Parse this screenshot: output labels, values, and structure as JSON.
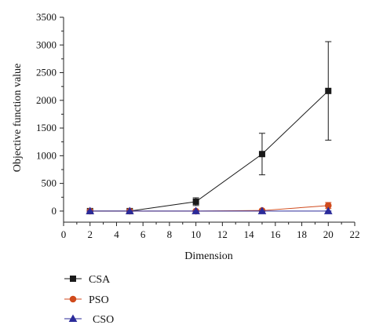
{
  "chart_data": {
    "type": "line",
    "xlabel": "Dimension",
    "ylabel": "Objective function value",
    "xlim": [
      0,
      22
    ],
    "ylim": [
      -200,
      3500
    ],
    "xticks": [
      0,
      2,
      4,
      6,
      8,
      10,
      12,
      14,
      16,
      18,
      20,
      22
    ],
    "yticks": [
      0,
      500,
      1000,
      1500,
      2000,
      2500,
      3000,
      3500
    ],
    "grid": false,
    "legend_position": "bottom-left",
    "series": [
      {
        "name": "CSA",
        "color": "#1a1a1a",
        "marker": "square",
        "x": [
          2,
          5,
          10,
          15,
          20
        ],
        "y": [
          0,
          0,
          170,
          1030,
          2170
        ],
        "error": [
          5,
          5,
          70,
          375,
          890
        ]
      },
      {
        "name": "PSO",
        "color": "#d04a1c",
        "marker": "circle",
        "x": [
          2,
          5,
          10,
          15,
          20
        ],
        "y": [
          0,
          0,
          0,
          10,
          100
        ],
        "error": [
          2,
          2,
          3,
          10,
          55
        ]
      },
      {
        "name": "CSO",
        "color": "#2b2b9a",
        "marker": "triangle",
        "x": [
          2,
          5,
          10,
          15,
          20
        ],
        "y": [
          0,
          0,
          0,
          0,
          0
        ],
        "error": [
          1,
          1,
          1,
          1,
          1
        ]
      }
    ]
  }
}
